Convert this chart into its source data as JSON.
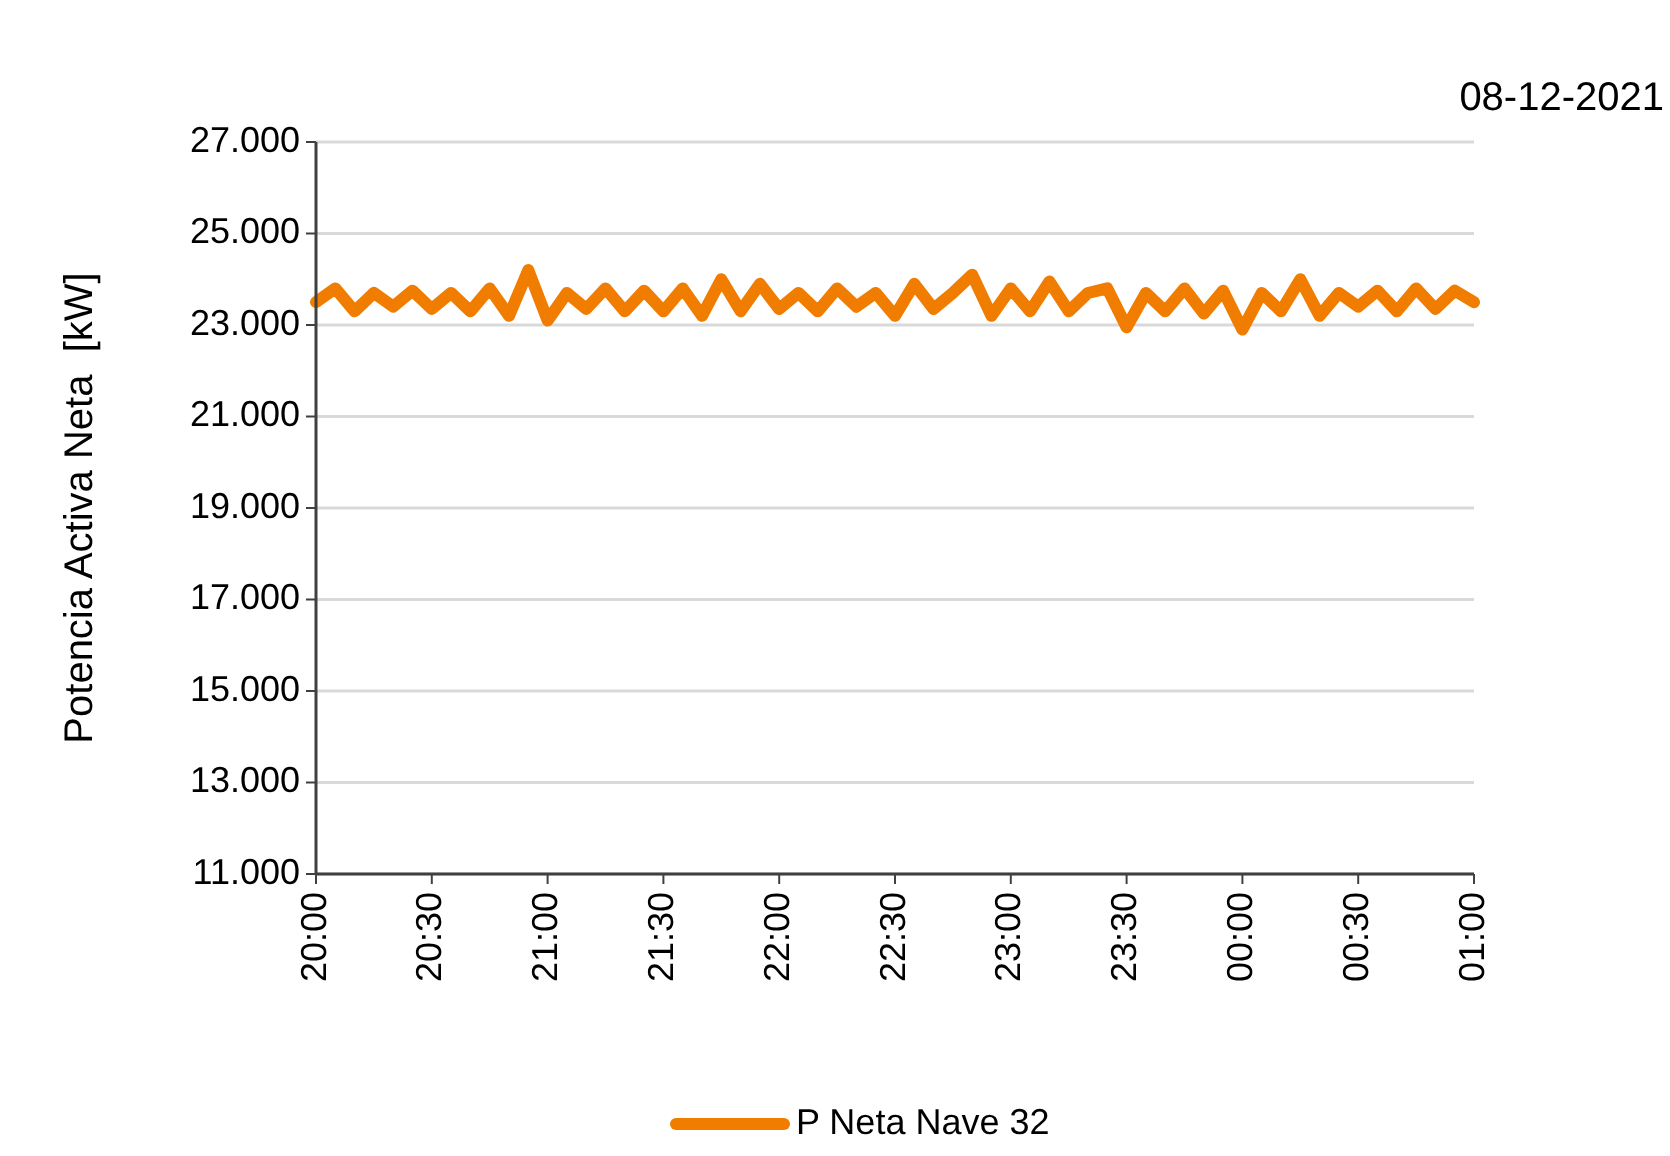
{
  "chart_data": {
    "type": "line",
    "title": "08-12-2021",
    "ylabel": "Potencia Activa Neta  [kW]",
    "x": [
      "2021-12-08T20:00",
      "2021-12-08T20:05",
      "2021-12-08T20:10",
      "2021-12-08T20:15",
      "2021-12-08T20:20",
      "2021-12-08T20:25",
      "2021-12-08T20:30",
      "2021-12-08T20:35",
      "2021-12-08T20:40",
      "2021-12-08T20:45",
      "2021-12-08T20:50",
      "2021-12-08T20:55",
      "2021-12-08T21:00",
      "2021-12-08T21:05",
      "2021-12-08T21:10",
      "2021-12-08T21:15",
      "2021-12-08T21:20",
      "2021-12-08T21:25",
      "2021-12-08T21:30",
      "2021-12-08T21:35",
      "2021-12-08T21:40",
      "2021-12-08T21:45",
      "2021-12-08T21:50",
      "2021-12-08T21:55",
      "2021-12-08T22:00",
      "2021-12-08T22:05",
      "2021-12-08T22:10",
      "2021-12-08T22:15",
      "2021-12-08T22:20",
      "2021-12-08T22:25",
      "2021-12-08T22:30",
      "2021-12-08T22:35",
      "2021-12-08T22:40",
      "2021-12-08T22:45",
      "2021-12-08T22:50",
      "2021-12-08T22:55",
      "2021-12-08T23:00",
      "2021-12-08T23:05",
      "2021-12-08T23:10",
      "2021-12-08T23:15",
      "2021-12-08T23:20",
      "2021-12-08T23:25",
      "2021-12-08T23:30",
      "2021-12-08T23:35",
      "2021-12-08T23:40",
      "2021-12-08T23:45",
      "2021-12-08T23:50",
      "2021-12-08T23:55",
      "2021-12-09T00:00",
      "2021-12-09T00:05",
      "2021-12-09T00:10",
      "2021-12-09T00:15",
      "2021-12-09T00:20",
      "2021-12-09T00:25",
      "2021-12-09T00:30",
      "2021-12-09T00:35",
      "2021-12-09T00:40",
      "2021-12-09T00:45",
      "2021-12-09T00:50",
      "2021-12-09T00:55",
      "2021-12-09T01:00"
    ],
    "series": [
      {
        "name": "P Neta Nave 32",
        "color": "#f07c00",
        "values": [
          23500,
          23800,
          23300,
          23700,
          23400,
          23750,
          23350,
          23700,
          23300,
          23800,
          23200,
          24200,
          23100,
          23700,
          23350,
          23800,
          23300,
          23750,
          23300,
          23800,
          23200,
          24000,
          23300,
          23900,
          23350,
          23700,
          23300,
          23800,
          23400,
          23700,
          23200,
          23900,
          23350,
          23700,
          24100,
          23200,
          23800,
          23300,
          23950,
          23300,
          23700,
          23800,
          22950,
          23700,
          23300,
          23800,
          23250,
          23750,
          22900,
          23700,
          23300,
          24000,
          23200,
          23700,
          23400,
          23750,
          23300,
          23800,
          23350,
          23750,
          23500
        ]
      }
    ],
    "xlim": [
      "2021-12-08T20:00",
      "2021-12-09T01:00"
    ],
    "xticks": [
      {
        "value": "2021-12-08T20:00",
        "label": "20:00"
      },
      {
        "value": "2021-12-08T20:30",
        "label": "20:30"
      },
      {
        "value": "2021-12-08T21:00",
        "label": "21:00"
      },
      {
        "value": "2021-12-08T21:30",
        "label": "21:30"
      },
      {
        "value": "2021-12-08T22:00",
        "label": "22:00"
      },
      {
        "value": "2021-12-08T22:30",
        "label": "22:30"
      },
      {
        "value": "2021-12-08T23:00",
        "label": "23:00"
      },
      {
        "value": "2021-12-08T23:30",
        "label": "23:30"
      },
      {
        "value": "2021-12-09T00:00",
        "label": "00:00"
      },
      {
        "value": "2021-12-09T00:30",
        "label": "00:30"
      },
      {
        "value": "2021-12-09T01:00",
        "label": "01:00"
      }
    ],
    "ylim": [
      11000,
      27000
    ],
    "yticks": [
      {
        "value": 11000,
        "label": "11.000"
      },
      {
        "value": 13000,
        "label": "13.000"
      },
      {
        "value": 15000,
        "label": "15.000"
      },
      {
        "value": 17000,
        "label": "17.000"
      },
      {
        "value": 19000,
        "label": "19.000"
      },
      {
        "value": 21000,
        "label": "21.000"
      },
      {
        "value": 23000,
        "label": "23.000"
      },
      {
        "value": 25000,
        "label": "25.000"
      },
      {
        "value": 27000,
        "label": "27.000"
      }
    ],
    "grid": "y",
    "legend": "bottom",
    "marker": "none",
    "line_style": "solid"
  }
}
